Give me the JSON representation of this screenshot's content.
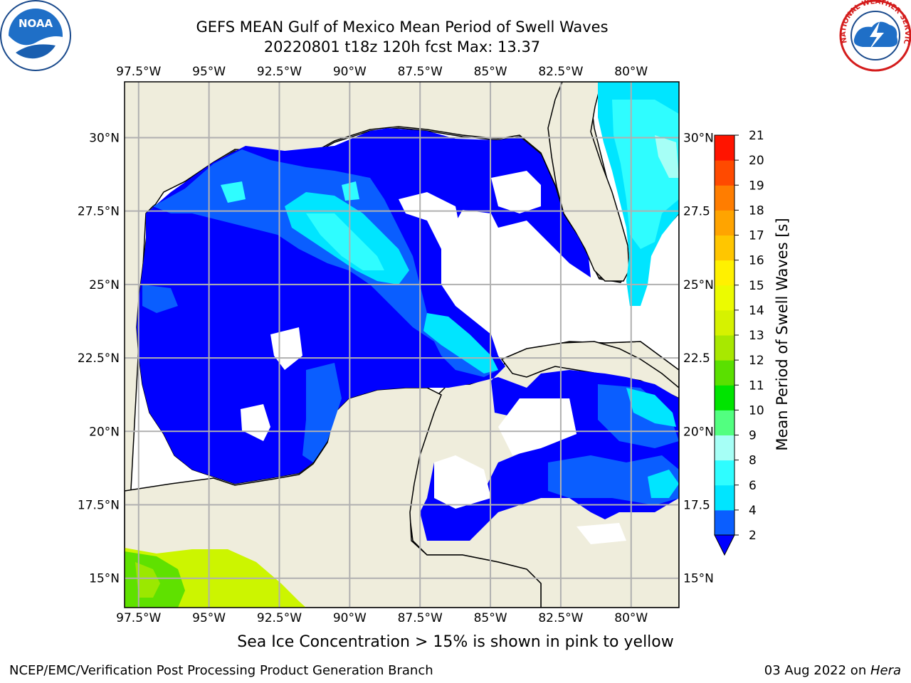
{
  "header": {
    "title_line1": "GEFS MEAN Gulf of Mexico Mean Period of Swell Waves",
    "title_line2": "20220801 t18z 120h fcst   Max: 13.37"
  },
  "logos": {
    "left_text": "NOAA",
    "right_text": "NATIONAL WEATHER SERVICE"
  },
  "map": {
    "region": "Gulf of Mexico",
    "lon_ticks": [
      "97.5°W",
      "95°W",
      "92.5°W",
      "90°W",
      "87.5°W",
      "85°W",
      "82.5°W",
      "80°W"
    ],
    "lat_ticks_left": [
      "30°N",
      "27.5°N",
      "25°N",
      "22.5°N",
      "20°N",
      "17.5°N",
      "15°N"
    ],
    "lat_ticks_right": [
      "30°N",
      "27.5",
      "25°N",
      "22.5",
      "20°N",
      "17.5",
      "15°N"
    ],
    "extent": {
      "lon": [
        -98.0,
        -78.3
      ],
      "lat": [
        14.0,
        31.9
      ]
    },
    "colors": {
      "land": "#efeddc",
      "ocean_none": "#ffffff"
    }
  },
  "colorbar": {
    "label": "Mean Period of Swell Waves [s]",
    "ticks": [
      "2",
      "4",
      "6",
      "8",
      "9",
      "10",
      "11",
      "12",
      "13",
      "14",
      "15",
      "16",
      "17",
      "18",
      "19",
      "20",
      "21"
    ],
    "colors": [
      "#0a5eff",
      "#00e5ff",
      "#2ffdff",
      "#a6fff6",
      "#52ff80",
      "#00e400",
      "#5ae000",
      "#a8e800",
      "#d6f200",
      "#ecfb00",
      "#fff100",
      "#ffc600",
      "#ffa400",
      "#ff7d00",
      "#ff4a00",
      "#ff1400"
    ],
    "under_color": "#0000ff"
  },
  "note": "Sea Ice Concentration > 15% is shown in pink to yellow",
  "footer": {
    "left": "NCEP/EMC/Verification Post Processing Product Generation Branch",
    "date": "03 Aug 2022 on ",
    "machine": "Hera"
  }
}
